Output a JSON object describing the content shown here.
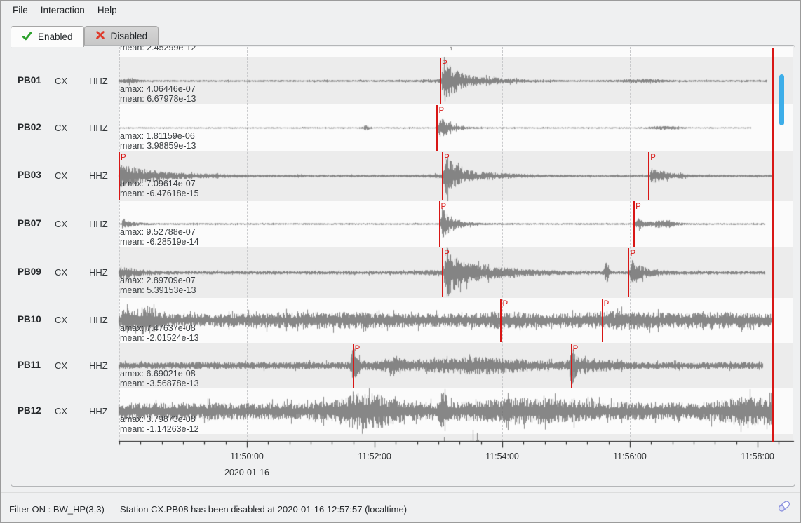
{
  "menu": {
    "items": [
      "File",
      "Interaction",
      "Help"
    ]
  },
  "tabs": [
    {
      "label": "Enabled",
      "icon": "check-icon",
      "active": true
    },
    {
      "label": "Disabled",
      "icon": "cross-icon",
      "active": false
    }
  ],
  "timeline": {
    "start": "11:48:00",
    "tick_labels": [
      "11:50:00",
      "11:52:00",
      "11:54:00",
      "11:56:00",
      "11:58:00"
    ],
    "major_interval_s": 120,
    "minor_interval_s": 20,
    "date": "2020-01-16",
    "cursor_time": "11:58:14"
  },
  "partial_rows": {
    "top": {
      "mean_text": "mean: 2.45299e-12",
      "trace": {
        "seed": 5,
        "base": 0.0,
        "end": "11:58:10",
        "events": [
          {
            "type": "burst",
            "t": 306,
            "a": 1.0,
            "rise": 4,
            "decay": 10
          }
        ]
      }
    },
    "bottom": {
      "trace": {
        "seed": 6,
        "base": 0.02,
        "end": "11:58:10",
        "events": [
          {
            "type": "spike",
            "t": 305,
            "a": 1.0,
            "sigma": 1.5
          },
          {
            "type": "swell",
            "t": 335,
            "a": 0.72,
            "sigma": 10
          }
        ]
      }
    }
  },
  "stations": [
    {
      "code": "PB01",
      "network": "CX",
      "channel": "HHZ",
      "amax_text": "amax: 4.06446e-07",
      "mean_text": "mean: 6.67978e-13",
      "picks": [
        {
          "label": "P",
          "time": "11:53:02"
        }
      ],
      "trace": {
        "seed": 11,
        "base": 0.045,
        "end": "11:58:09",
        "events": [
          {
            "type": "swell",
            "t": 10,
            "a": 0.1,
            "sigma": 6
          },
          {
            "type": "burst",
            "t": 302,
            "a": 0.92,
            "rise": 3,
            "decay": 13
          },
          {
            "type": "swell",
            "t": 338,
            "a": 0.1,
            "sigma": 30
          },
          {
            "type": "swell",
            "t": 490,
            "a": 0.06,
            "sigma": 15
          }
        ]
      }
    },
    {
      "code": "PB02",
      "network": "CX",
      "channel": "HHZ",
      "amax_text": "amax: 1.81159e-06",
      "mean_text": "mean: 3.98859e-13",
      "picks": [
        {
          "label": "P",
          "time": "11:52:59"
        }
      ],
      "trace": {
        "seed": 22,
        "base": 0.032,
        "end": "11:57:54",
        "events": [
          {
            "type": "spike",
            "t": 232,
            "a": 0.09,
            "sigma": 2
          },
          {
            "type": "burst",
            "t": 299,
            "a": 0.58,
            "rise": 2,
            "decay": 9
          },
          {
            "type": "swell",
            "t": 512,
            "a": 0.06,
            "sigma": 10
          }
        ]
      }
    },
    {
      "code": "PB03",
      "network": "CX",
      "channel": "HHZ",
      "amax_text": "amax: 7.09614e-07",
      "mean_text": "mean: -6.47618e-15",
      "picks": [
        {
          "label": "P",
          "time": "11:48:00"
        },
        {
          "label": "P",
          "time": "11:53:04"
        },
        {
          "label": "P",
          "time": "11:56:18"
        }
      ],
      "trace": {
        "seed": 33,
        "base": 0.05,
        "end": "11:58:14",
        "events": [
          {
            "type": "burst",
            "t": 0,
            "a": 0.5,
            "rise": 0,
            "decay": 35
          },
          {
            "type": "burst",
            "t": 304,
            "a": 0.85,
            "rise": 3,
            "decay": 11
          },
          {
            "type": "swell",
            "t": 338,
            "a": 0.1,
            "sigma": 30
          },
          {
            "type": "burst",
            "t": 498,
            "a": 0.36,
            "rise": 2,
            "decay": 14
          }
        ]
      }
    },
    {
      "code": "PB07",
      "network": "CX",
      "channel": "HHZ",
      "amax_text": "amax: 9.52788e-07",
      "mean_text": "mean: -6.28519e-14",
      "picks": [
        {
          "label": "P",
          "time": "11:53:01"
        },
        {
          "label": "P",
          "time": "11:56:04"
        }
      ],
      "trace": {
        "seed": 44,
        "base": 0.04,
        "end": "11:58:07",
        "events": [
          {
            "type": "burst",
            "t": 2,
            "a": 0.22,
            "rise": 1,
            "decay": 9
          },
          {
            "type": "burst",
            "t": 301,
            "a": 0.66,
            "rise": 3,
            "decay": 11
          },
          {
            "type": "burst",
            "t": 484,
            "a": 0.26,
            "rise": 2,
            "decay": 9
          },
          {
            "type": "swell",
            "t": 512,
            "a": 0.14,
            "sigma": 8
          }
        ]
      }
    },
    {
      "code": "PB09",
      "network": "CX",
      "channel": "HHZ",
      "amax_text": "amax: 2.89709e-07",
      "mean_text": "mean: 5.39153e-13",
      "picks": [
        {
          "label": "P",
          "time": "11:53:04"
        },
        {
          "label": "P",
          "time": "11:55:59"
        }
      ],
      "trace": {
        "seed": 55,
        "base": 0.075,
        "end": "11:58:07",
        "events": [
          {
            "type": "burst",
            "t": 0,
            "a": 0.3,
            "rise": 0,
            "decay": 13
          },
          {
            "type": "burst",
            "t": 304,
            "a": 0.95,
            "rise": 4,
            "decay": 15
          },
          {
            "type": "swell",
            "t": 348,
            "a": 0.14,
            "sigma": 35
          },
          {
            "type": "spike",
            "t": 458,
            "a": 0.42,
            "sigma": 1.5
          },
          {
            "type": "burst",
            "t": 479,
            "a": 0.48,
            "rise": 3,
            "decay": 11
          }
        ]
      }
    },
    {
      "code": "PB10",
      "network": "CX",
      "channel": "HHZ",
      "amax_text": "amax: 7.47637e-08",
      "mean_text": "mean: -2.01524e-13",
      "picks": [
        {
          "label": "P",
          "time": "11:53:59"
        },
        {
          "label": "P",
          "time": "11:55:34"
        }
      ],
      "trace": {
        "seed": 66,
        "base": 0.3,
        "end": "11:58:14",
        "events": [
          {
            "type": "spike",
            "t": 6,
            "a": 0.5,
            "sigma": 2
          },
          {
            "type": "swell",
            "t": 25,
            "a": 0.4,
            "sigma": 9
          },
          {
            "type": "swell",
            "t": 200,
            "a": 0.1,
            "sigma": 60
          },
          {
            "type": "swell",
            "t": 360,
            "a": 0.12,
            "sigma": 20
          },
          {
            "type": "swell",
            "t": 470,
            "a": 0.15,
            "sigma": 30
          },
          {
            "type": "swell",
            "t": 565,
            "a": 0.1,
            "sigma": 25
          }
        ]
      }
    },
    {
      "code": "PB11",
      "network": "CX",
      "channel": "HHZ",
      "amax_text": "amax: 6.69021e-08",
      "mean_text": "mean: -3.56878e-13",
      "picks": [
        {
          "label": "P",
          "time": "11:51:40"
        },
        {
          "label": "P",
          "time": "11:55:05"
        }
      ],
      "trace": {
        "seed": 77,
        "base": 0.17,
        "end": "11:58:05",
        "events": [
          {
            "type": "spike",
            "t": 220,
            "a": 0.55,
            "sigma": 2
          },
          {
            "type": "burst",
            "t": 220,
            "a": 0.3,
            "rise": 1,
            "decay": 6
          },
          {
            "type": "swell",
            "t": 257,
            "a": 0.2,
            "sigma": 9
          },
          {
            "type": "swell",
            "t": 335,
            "a": 0.26,
            "sigma": 38
          },
          {
            "type": "spike",
            "t": 425,
            "a": 0.65,
            "sigma": 2
          },
          {
            "type": "burst",
            "t": 425,
            "a": 0.32,
            "rise": 1,
            "decay": 7
          },
          {
            "type": "swell",
            "t": 447,
            "a": 0.15,
            "sigma": 15
          }
        ]
      }
    },
    {
      "code": "PB12",
      "network": "CX",
      "channel": "HHZ",
      "amax_text": "amax: 3.79873e-08",
      "mean_text": "mean: -1.14263e-12",
      "picks": [],
      "trace": {
        "seed": 88,
        "base": 0.4,
        "end": "11:58:14",
        "events": [
          {
            "type": "swell",
            "t": 232,
            "a": 0.5,
            "sigma": 20
          },
          {
            "type": "spike",
            "t": 305,
            "a": 0.9,
            "sigma": 2
          },
          {
            "type": "swell",
            "t": 385,
            "a": 0.22,
            "sigma": 40
          },
          {
            "type": "swell",
            "t": 592,
            "a": 0.3,
            "sigma": 22
          }
        ]
      }
    }
  ],
  "status": {
    "filter_text": "Filter ON : BW_HP(3,3)",
    "message": "Station CX.PB08 has been disabled at 2020-01-16 12:57:57 (localtime)"
  },
  "colors": {
    "accent": "#3daee9",
    "pick_red": "#d81716",
    "trace_gray": "#6f6f6f",
    "band_gray": "#ececec",
    "band_white": "#fbfbfb",
    "check_green": "#2da12d",
    "cross_red": "#df3b2c"
  }
}
